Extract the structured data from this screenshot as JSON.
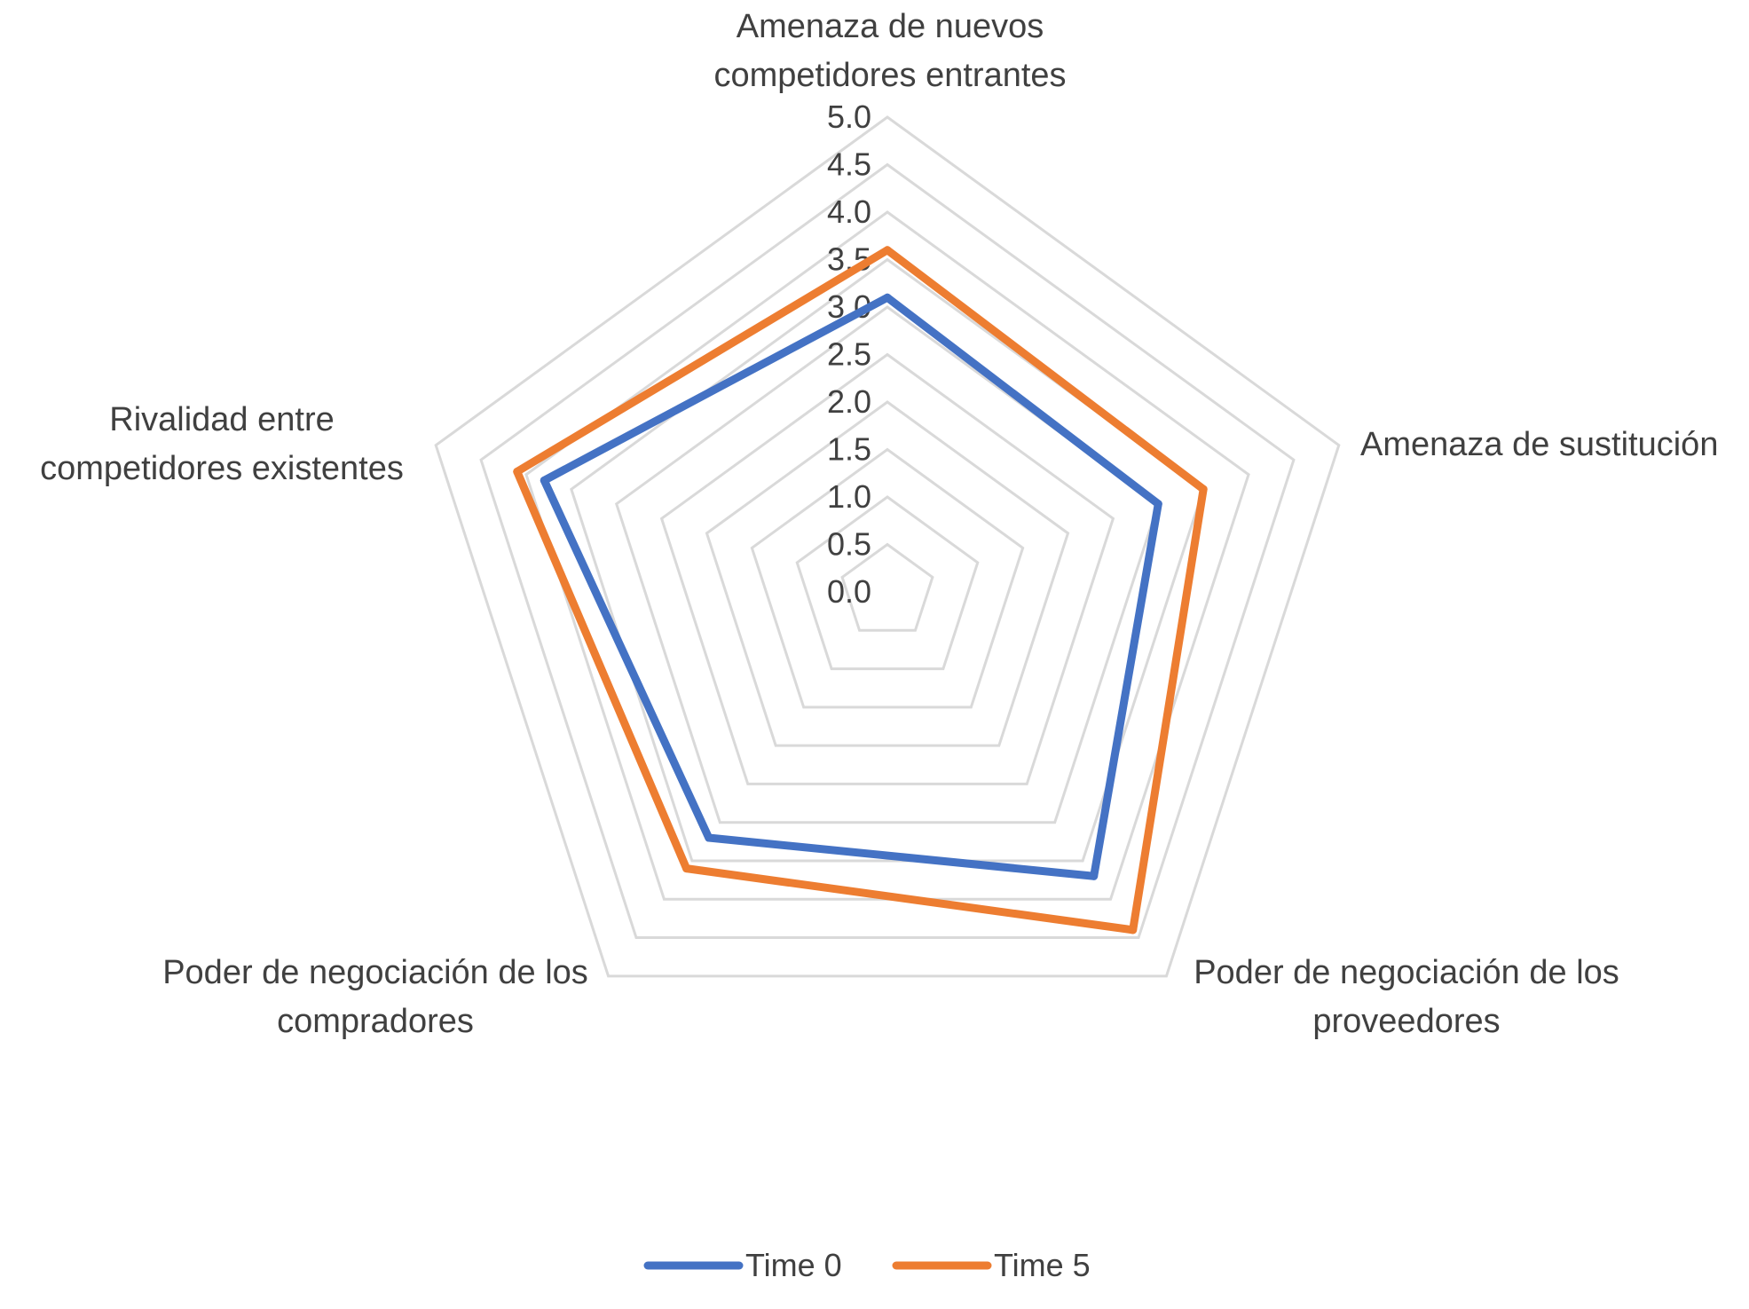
{
  "chart_data": {
    "type": "radar",
    "categories": [
      [
        "Amenaza de nuevos",
        "competidores entrantes"
      ],
      [
        "Amenaza de sustitución"
      ],
      [
        "Poder de negociación de los",
        "proveedores"
      ],
      [
        "Poder de negociación de los",
        "compradores"
      ],
      [
        "Rivalidad entre",
        "competidores existentes"
      ]
    ],
    "rlim": [
      0,
      5
    ],
    "ticks": [
      "0.0",
      "0.5",
      "1.0",
      "1.5",
      "2.0",
      "2.5",
      "3.0",
      "3.5",
      "4.0",
      "4.5",
      "5.0"
    ],
    "grid": true,
    "legend_position": "bottom",
    "series": [
      {
        "name": "Time 0",
        "color": "#4472C4",
        "values": [
          3.1,
          3.0,
          3.7,
          3.2,
          3.8
        ]
      },
      {
        "name": "Time 5",
        "color": "#ED7D31",
        "values": [
          3.6,
          3.5,
          4.4,
          3.6,
          4.1
        ]
      }
    ],
    "gridline_color": "#D9D9D9"
  }
}
